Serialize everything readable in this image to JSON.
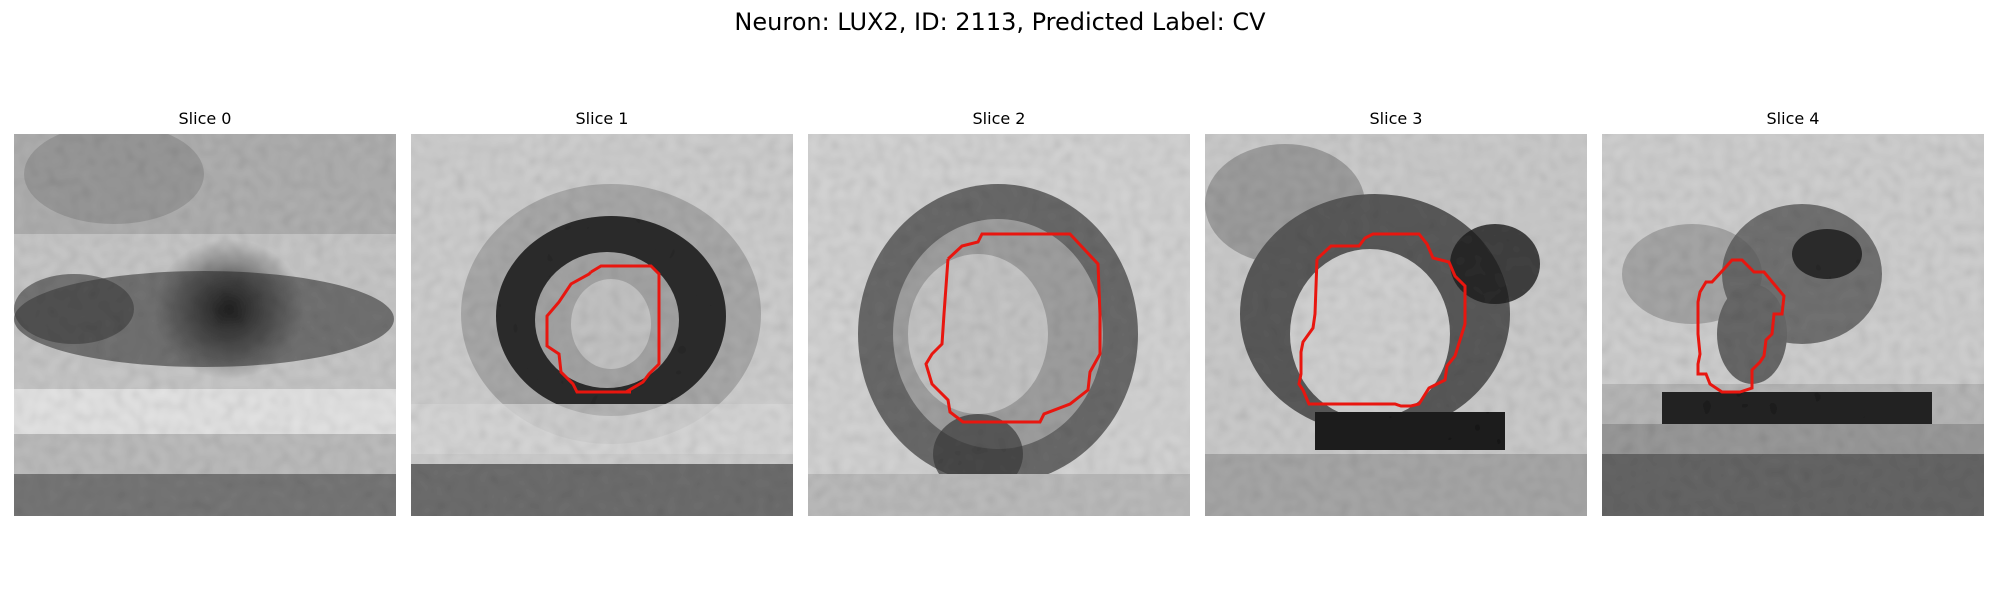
{
  "figure": {
    "title": "Neuron: LUX2, ID: 2113, Predicted Label: CV"
  },
  "colors": {
    "contour": "#e8160f",
    "background": "#ffffff"
  },
  "panels": [
    {
      "title": "Slice 0",
      "has_contour": false
    },
    {
      "title": "Slice 1",
      "has_contour": true
    },
    {
      "title": "Slice 2",
      "has_contour": true
    },
    {
      "title": "Slice 3",
      "has_contour": true
    },
    {
      "title": "Slice 4",
      "has_contour": true
    }
  ]
}
